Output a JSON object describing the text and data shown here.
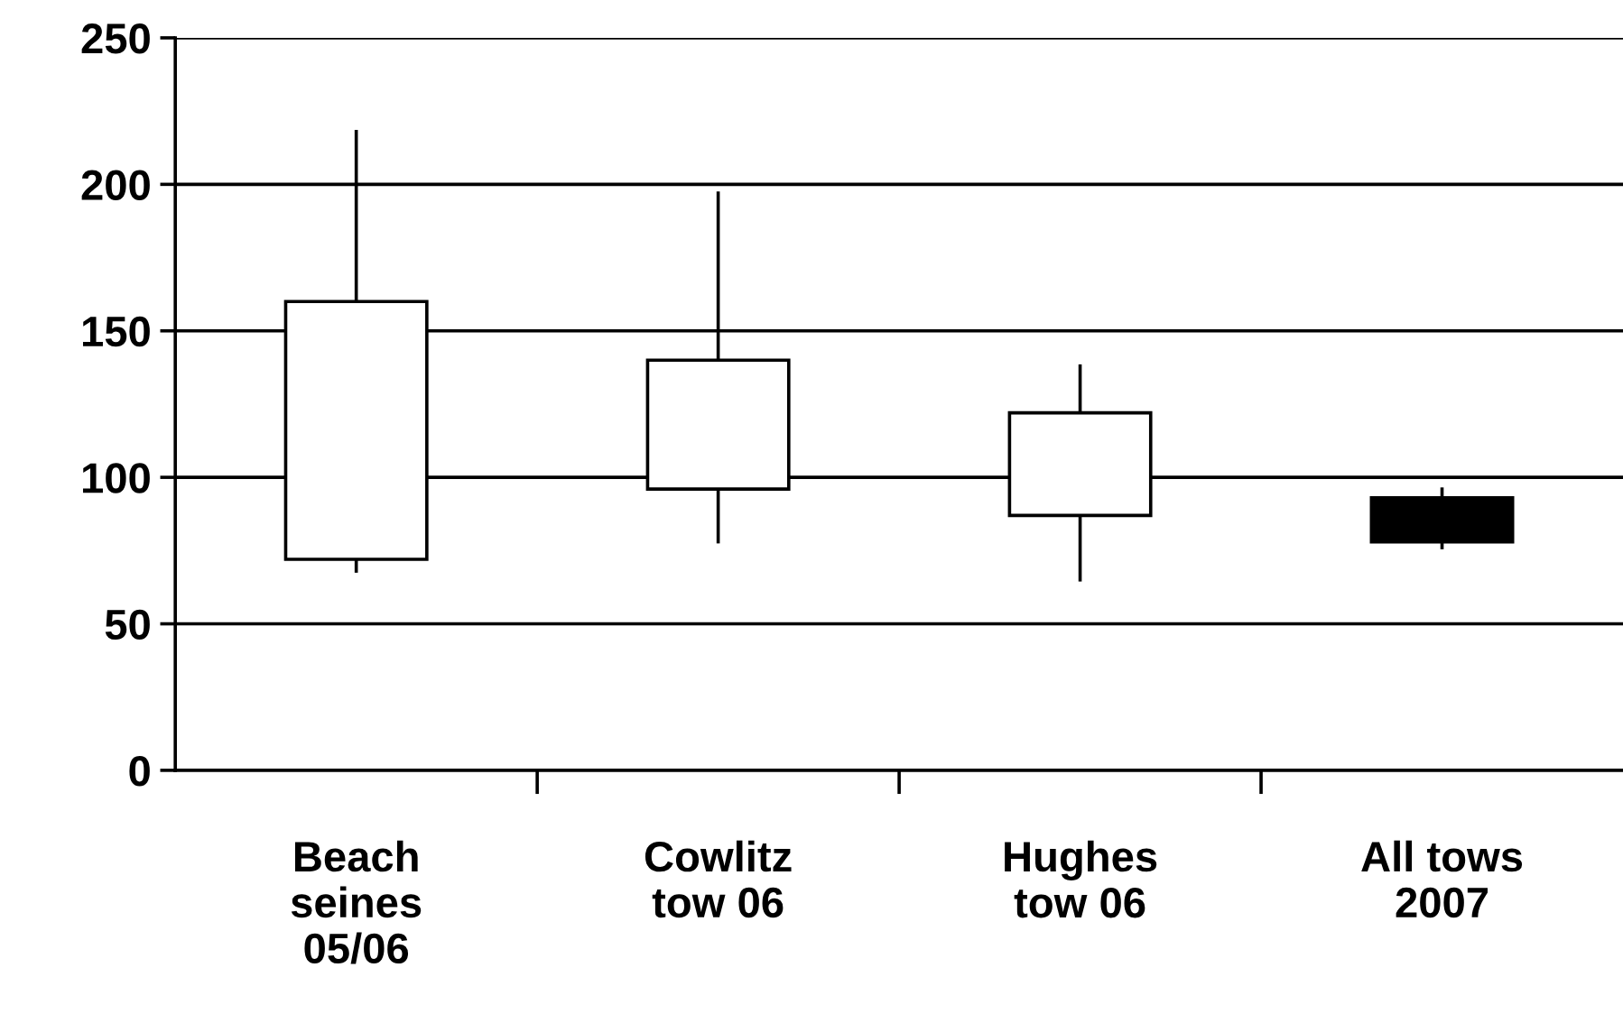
{
  "chart_data": {
    "type": "candlestick",
    "categories": [
      "Beach\nseines\n05/06",
      "Cowlitz\ntow 06",
      "Hughes\ntow 06",
      "All tows\n2007"
    ],
    "ohlc": [
      [
        72,
        218,
        68,
        160
      ],
      [
        96,
        197,
        78,
        140
      ],
      [
        87,
        138,
        65,
        122
      ],
      [
        93,
        96,
        76,
        78
      ]
    ],
    "ylim": [
      0,
      250
    ],
    "yticks": [
      0,
      50,
      100,
      150,
      200,
      250
    ],
    "grid": "y"
  }
}
